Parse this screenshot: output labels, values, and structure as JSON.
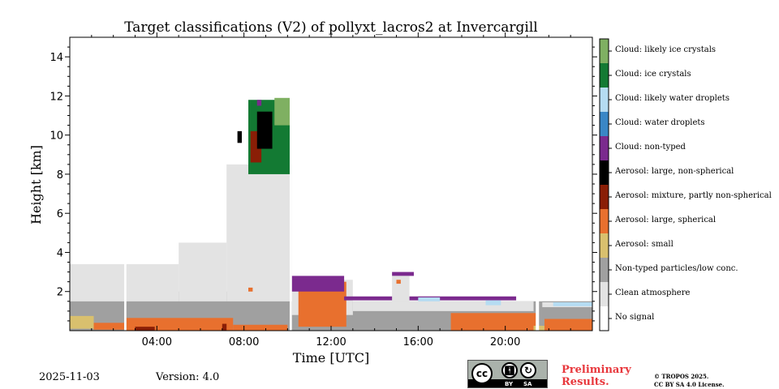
{
  "chart_data": {
    "type": "heatmap",
    "title": "Target classifications (V2) of pollyxt_lacros2 at Invercargill",
    "xlabel": "Time [UTC]",
    "ylabel": "Height [km]",
    "xlim_hours": [
      0,
      24
    ],
    "ylim_km": [
      0,
      15
    ],
    "x_ticks": [
      {
        "value": 4,
        "label": "04:00"
      },
      {
        "value": 8,
        "label": "08:00"
      },
      {
        "value": 12,
        "label": "12:00"
      },
      {
        "value": 16,
        "label": "16:00"
      },
      {
        "value": 20,
        "label": "20:00"
      }
    ],
    "y_ticks": [
      {
        "value": 2,
        "label": "2"
      },
      {
        "value": 4,
        "label": "4"
      },
      {
        "value": 6,
        "label": "6"
      },
      {
        "value": 8,
        "label": "8"
      },
      {
        "value": 10,
        "label": "10"
      },
      {
        "value": 12,
        "label": "12"
      },
      {
        "value": 14,
        "label": "14"
      }
    ],
    "classes": [
      {
        "label": "No signal",
        "color": "#ffffff"
      },
      {
        "label": "Clean atmosphere",
        "color": "#e3e3e3"
      },
      {
        "label": "Non-typed particles/low conc.",
        "color": "#a0a0a0"
      },
      {
        "label": "Aerosol: small",
        "color": "#d9c06e"
      },
      {
        "label": "Aerosol: large, spherical",
        "color": "#e8702e"
      },
      {
        "label": "Aerosol: mixture, partly non-spherical",
        "color": "#8a1e06"
      },
      {
        "label": "Aerosol: large, non-spherical",
        "color": "#000000"
      },
      {
        "label": "Cloud: non-typed",
        "color": "#7b2a8e"
      },
      {
        "label": "Cloud: water droplets",
        "color": "#3a87c6"
      },
      {
        "label": "Cloud: likely water droplets",
        "color": "#b5dcf2"
      },
      {
        "label": "Cloud: ice crystals",
        "color": "#137a33"
      },
      {
        "label": "Cloud: likely ice crystals",
        "color": "#7fb062"
      }
    ],
    "regions": [
      {
        "cls": 2,
        "t0": 0,
        "t1": 24,
        "h0": 0,
        "h1": 1.5
      },
      {
        "cls": 2,
        "t0": 0,
        "t1": 10.1,
        "h0": 1.5,
        "h1": 2
      },
      {
        "cls": 1,
        "t0": 0,
        "t1": 5,
        "h0": 1.5,
        "h1": 3.4
      },
      {
        "cls": 1,
        "t0": 5,
        "t1": 7.2,
        "h0": 1.5,
        "h1": 4.5
      },
      {
        "cls": 1,
        "t0": 7.2,
        "t1": 10.2,
        "h0": 1.5,
        "h1": 8.5
      },
      {
        "cls": 1,
        "t0": 10.2,
        "t1": 13,
        "h0": 0.8,
        "h1": 2.6
      },
      {
        "cls": 1,
        "t0": 13,
        "t1": 21.3,
        "h0": 1.0,
        "h1": 1.5
      },
      {
        "cls": 1,
        "t0": 21.7,
        "t1": 24,
        "h0": 1.2,
        "h1": 1.45
      },
      {
        "cls": 3,
        "t0": 0,
        "t1": 1.1,
        "h0": 0.1,
        "h1": 0.75
      },
      {
        "cls": 4,
        "t0": 1.1,
        "t1": 2.5,
        "h0": 0.05,
        "h1": 0.4
      },
      {
        "cls": 4,
        "t0": 2.6,
        "t1": 7.5,
        "h0": 0,
        "h1": 0.65
      },
      {
        "cls": 4,
        "t0": 7.5,
        "t1": 10,
        "h0": 0,
        "h1": 0.3
      },
      {
        "cls": 5,
        "t0": 3,
        "t1": 3.9,
        "h0": 0,
        "h1": 0.2
      },
      {
        "cls": 5,
        "t0": 7.0,
        "t1": 7.2,
        "h0": 0,
        "h1": 0.35
      },
      {
        "cls": 4,
        "t0": 10.5,
        "t1": 12.7,
        "h0": 0.2,
        "h1": 2.5
      },
      {
        "cls": 4,
        "t0": 17.5,
        "t1": 21.5,
        "h0": 0,
        "h1": 0.9
      },
      {
        "cls": 3,
        "t0": 21.3,
        "t1": 24,
        "h0": 0,
        "h1": 0.25
      },
      {
        "cls": 4,
        "t0": 21.8,
        "t1": 24,
        "h0": 0,
        "h1": 0.6
      },
      {
        "cls": 4,
        "t0": 8.2,
        "t1": 8.4,
        "h0": 2.0,
        "h1": 2.2
      },
      {
        "cls": 7,
        "t0": 10.2,
        "t1": 12.6,
        "h0": 2.0,
        "h1": 2.8
      },
      {
        "cls": 7,
        "t0": 12.6,
        "t1": 20.5,
        "h0": 1.55,
        "h1": 1.75
      },
      {
        "cls": 7,
        "t0": 14.8,
        "t1": 15.8,
        "h0": 2.8,
        "h1": 3.0
      },
      {
        "cls": 1,
        "t0": 14.8,
        "t1": 15.6,
        "h0": 1.5,
        "h1": 2.8
      },
      {
        "cls": 4,
        "t0": 15.0,
        "t1": 15.2,
        "h0": 2.4,
        "h1": 2.6
      },
      {
        "cls": 9,
        "t0": 16.0,
        "t1": 17.0,
        "h0": 1.5,
        "h1": 1.7
      },
      {
        "cls": 9,
        "t0": 19.1,
        "t1": 19.8,
        "h0": 1.3,
        "h1": 1.55
      },
      {
        "cls": 9,
        "t0": 22.2,
        "t1": 24,
        "h0": 1.25,
        "h1": 1.45
      },
      {
        "cls": 10,
        "t0": 8.2,
        "t1": 10.1,
        "h0": 8.0,
        "h1": 11.8
      },
      {
        "cls": 11,
        "t0": 9.4,
        "t1": 10.1,
        "h0": 10.5,
        "h1": 11.9
      },
      {
        "cls": 5,
        "t0": 8.3,
        "t1": 8.8,
        "h0": 8.6,
        "h1": 10.2
      },
      {
        "cls": 6,
        "t0": 8.6,
        "t1": 9.3,
        "h0": 9.3,
        "h1": 11.2
      },
      {
        "cls": 6,
        "t0": 7.7,
        "t1": 7.9,
        "h0": 9.6,
        "h1": 10.2
      },
      {
        "cls": 7,
        "t0": 8.6,
        "t1": 8.8,
        "h0": 11.5,
        "h1": 11.8
      }
    ],
    "data_gaps_hours": [
      {
        "t0": 2.5,
        "t1": 2.6
      },
      {
        "t0": 10.1,
        "t1": 10.2
      },
      {
        "t0": 21.4,
        "t1": 21.55
      }
    ]
  },
  "footer": {
    "date": "2025-11-03",
    "version": "Version: 4.0",
    "preliminary_line1": "Preliminary",
    "preliminary_line2": "Results.",
    "copyright_line1": "© TROPOS 2025.",
    "copyright_line2": "CC BY SA 4.0 License.",
    "cc_label": "cc",
    "by_label": "BY",
    "sa_label": "SA"
  }
}
